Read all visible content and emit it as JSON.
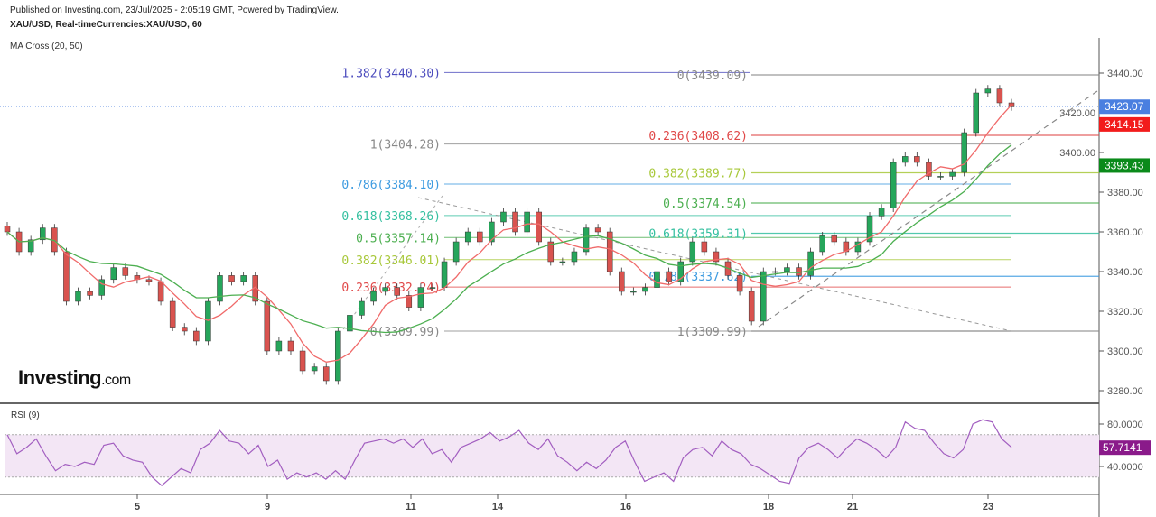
{
  "header": {
    "published": "Published on Investing.com, 23/Jul/2025 - 2:05:19 GMT, Powered by TradingView.",
    "symbol": "XAU/USD, Real-timeCurrencies:XAU/USD, 60",
    "indicator": "MA Cross (20, 50)"
  },
  "logo": {
    "main": "Investing",
    "suffix": ".com"
  },
  "rsi_label": "RSI (9)",
  "colors": {
    "up": "#26a65b",
    "down": "#d9534f",
    "ma_fast": "#f06a6a",
    "ma_slow": "#4caf50",
    "rsi": "#a25ec0",
    "rsi_band": "#f3e6f5",
    "last_price": "#4a7fe0",
    "ma_fast_tag": "#f21c1c",
    "ma_slow_tag": "#0a8a1a",
    "rsi_tag": "#8a1a8a"
  },
  "chart_data": [
    {
      "type": "candlestick",
      "ylim": [
        3275,
        3450
      ],
      "y_ticks": [
        "3440.00",
        "3420.00",
        "3400.00",
        "3380.00",
        "3360.00",
        "3340.00",
        "3320.00",
        "3300.00",
        "3280.00"
      ],
      "y_tick_values": [
        3440,
        3420,
        3400,
        3380,
        3360,
        3340,
        3320,
        3300,
        3280
      ],
      "x_ticks": [
        "5",
        "9",
        "11",
        "14",
        "16",
        "18",
        "21",
        "23"
      ],
      "closes": [
        3360,
        3350,
        3356,
        3362,
        3350,
        3325,
        3330,
        3328,
        3336,
        3342,
        3338,
        3336,
        3335,
        3325,
        3312,
        3310,
        3305,
        3325,
        3338,
        3335,
        3338,
        3325,
        3300,
        3305,
        3300,
        3290,
        3292,
        3285,
        3310,
        3318,
        3325,
        3330,
        3332,
        3328,
        3322,
        3332,
        3332,
        3345,
        3355,
        3360,
        3355,
        3365,
        3370,
        3360,
        3370,
        3355,
        3345,
        3345,
        3350,
        3362,
        3360,
        3340,
        3330,
        3330,
        3332,
        3340,
        3335,
        3345,
        3355,
        3350,
        3345,
        3338,
        3330,
        3315,
        3340,
        3340,
        3342,
        3338,
        3350,
        3358,
        3355,
        3350,
        3355,
        3368,
        3372,
        3395,
        3398,
        3395,
        3388,
        3388,
        3390,
        3410,
        3430,
        3432,
        3425,
        3423
      ],
      "last_price": "3423.07",
      "ma_fast_value": "3414.15",
      "ma_slow_value": "3393.43",
      "fib_left": [
        {
          "label": "1.382(3440.30)",
          "value": 3440.3,
          "color": "#4b4bbd"
        },
        {
          "label": "1(3404.28)",
          "value": 3404.28,
          "color": "#888888"
        },
        {
          "label": "0.786(3384.10)",
          "value": 3384.1,
          "color": "#3d9be0"
        },
        {
          "label": "0.618(3368.26)",
          "value": 3368.26,
          "color": "#35c0a0"
        },
        {
          "label": "0.5(3357.14)",
          "value": 3357.14,
          "color": "#4caf50"
        },
        {
          "label": "0.382(3346.01)",
          "value": 3346.01,
          "color": "#a8c83a"
        },
        {
          "label": "0.236(3332.24)",
          "value": 3332.24,
          "color": "#e04848"
        },
        {
          "label": "0(3309.99)",
          "value": 3309.99,
          "color": "#888888"
        }
      ],
      "fib_right": [
        {
          "label": "0(3439.09)",
          "value": 3439.09,
          "color": "#888888"
        },
        {
          "label": "0.236(3408.62)",
          "value": 3408.62,
          "color": "#e04848"
        },
        {
          "label": "0.382(3389.77)",
          "value": 3389.77,
          "color": "#a8c83a"
        },
        {
          "label": "0.5(3374.54)",
          "value": 3374.54,
          "color": "#4caf50"
        },
        {
          "label": "0.618(3359.31)",
          "value": 3359.31,
          "color": "#35c0a0"
        },
        {
          "label": "0.786(3337.62)",
          "value": 3337.62,
          "color": "#3d9be0"
        },
        {
          "label": "1(3309.99)",
          "value": 3309.99,
          "color": "#888888"
        }
      ]
    },
    {
      "type": "line",
      "name": "RSI (9)",
      "ylim": [
        15,
        92
      ],
      "y_ticks": [
        "80.0000",
        "40.0000"
      ],
      "y_tick_values": [
        80,
        40
      ],
      "bands": [
        70,
        30
      ],
      "last_value": "57.7141",
      "values": [
        70,
        52,
        58,
        66,
        50,
        36,
        42,
        40,
        44,
        42,
        60,
        62,
        50,
        46,
        44,
        30,
        22,
        30,
        38,
        34,
        56,
        62,
        74,
        64,
        62,
        52,
        60,
        40,
        46,
        28,
        34,
        30,
        34,
        28,
        36,
        28,
        46,
        62,
        64,
        66,
        62,
        66,
        58,
        66,
        52,
        56,
        44,
        58,
        62,
        66,
        72,
        64,
        68,
        74,
        62,
        56,
        66,
        50,
        44,
        36,
        44,
        38,
        46,
        58,
        64,
        44,
        26,
        30,
        34,
        26,
        48,
        56,
        58,
        50,
        64,
        56,
        52,
        42,
        38,
        32,
        26,
        24,
        48,
        58,
        62,
        56,
        48,
        58,
        66,
        62,
        56,
        48,
        58,
        82,
        76,
        74,
        62,
        52,
        48,
        56,
        80,
        84,
        82,
        66,
        58
      ]
    }
  ]
}
